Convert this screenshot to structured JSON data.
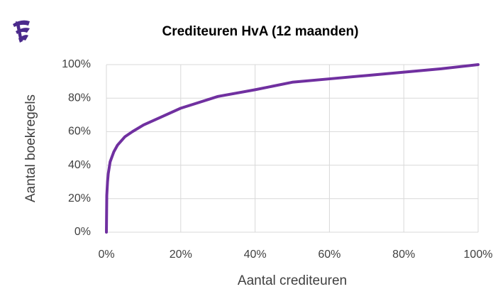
{
  "chart_data": {
    "type": "line",
    "title": "Crediteuren HvA (12 maanden)",
    "xlabel": "Aantal crediteuren",
    "ylabel": "Aantal boekregels",
    "grid": true,
    "series": [
      {
        "name": "Crediteuren HvA",
        "color": "#7030a0",
        "x": [
          0,
          0.1,
          0.3,
          0.5,
          1,
          2,
          3,
          5,
          7,
          10,
          15,
          20,
          25,
          30,
          40,
          50,
          60,
          70,
          80,
          90,
          100
        ],
        "values": [
          0,
          22,
          30,
          35,
          42,
          48,
          52,
          57,
          60,
          64,
          69,
          74,
          77.5,
          81,
          85,
          89.5,
          91.5,
          93.5,
          95.5,
          97.5,
          100
        ]
      }
    ],
    "xlim": [
      0,
      100
    ],
    "ylim": [
      0,
      100
    ],
    "xticks": [
      {
        "value": 0,
        "label": "0%"
      },
      {
        "value": 20,
        "label": "20%"
      },
      {
        "value": 40,
        "label": "40%"
      },
      {
        "value": 60,
        "label": "60%"
      },
      {
        "value": 80,
        "label": "80%"
      },
      {
        "value": 100,
        "label": "100%"
      }
    ],
    "yticks": [
      {
        "value": 0,
        "label": "0%"
      },
      {
        "value": 20,
        "label": "20%"
      },
      {
        "value": 40,
        "label": "40%"
      },
      {
        "value": 60,
        "label": "60%"
      },
      {
        "value": 80,
        "label": "80%"
      },
      {
        "value": 100,
        "label": "100%"
      }
    ]
  }
}
